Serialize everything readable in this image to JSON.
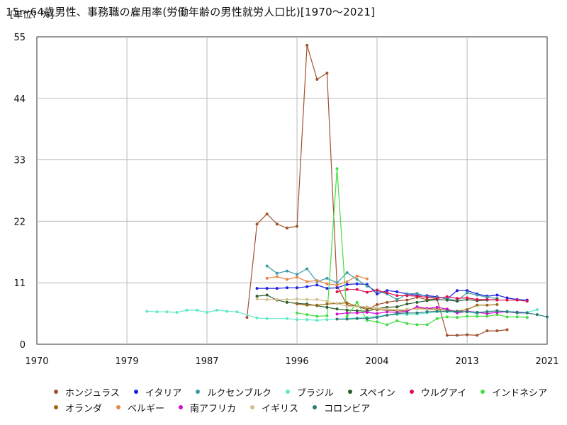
{
  "header": {
    "unit": "[単位：%]",
    "title": "15～64歳男性、事務職の雇用率(労働年齢の男性就労人口比)[1970～2021]"
  },
  "chart_data": {
    "type": "line",
    "title": "15～64歳男性、事務職の雇用率(労働年齢の男性就労人口比)[1970～2021]",
    "unit": "[単位：%]",
    "xlim": [
      1970,
      2021
    ],
    "ylim": [
      0,
      55
    ],
    "xticks": [
      1970,
      1979,
      1987,
      1996,
      2004,
      2013,
      2021
    ],
    "yticks": [
      0,
      11,
      22,
      33,
      44,
      55
    ],
    "grid": true,
    "legend_position": "bottom",
    "series": [
      {
        "name": "ホンジュラス",
        "color": "#a0522d",
        "x": [
          1991,
          1992,
          1993,
          1994,
          1995,
          1996,
          1997,
          1998,
          1999,
          2000,
          2001,
          2002,
          2003,
          2004,
          2005,
          2006,
          2007,
          2008,
          2009,
          2010,
          2011,
          2012,
          2013,
          2014,
          2015,
          2016,
          2017
        ],
        "y": [
          4.8,
          21.5,
          23.3,
          21.5,
          20.8,
          21.1,
          53.5,
          47.4,
          48.5,
          10.5,
          7.0,
          6.8,
          6.2,
          7.1,
          7.5,
          7.8,
          7.9,
          8.4,
          8.0,
          8.1,
          1.6,
          1.6,
          1.7,
          1.6,
          2.4,
          2.4,
          2.6
        ]
      },
      {
        "name": "イタリア",
        "color": "#2020e0",
        "x": [
          1992,
          1993,
          1994,
          1995,
          1996,
          1997,
          1998,
          1999,
          2000,
          2001,
          2002,
          2003,
          2004,
          2005,
          2006,
          2007,
          2008,
          2009,
          2010,
          2011,
          2012,
          2013,
          2014,
          2015,
          2016,
          2017,
          2018,
          2019
        ],
        "y": [
          10.0,
          10.0,
          10.0,
          10.1,
          10.1,
          10.3,
          10.6,
          10.0,
          10.1,
          10.7,
          10.8,
          10.7,
          9.0,
          9.6,
          9.4,
          9.0,
          8.8,
          8.7,
          8.5,
          8.1,
          9.6,
          9.6,
          9.0,
          8.6,
          8.8,
          8.3,
          8.0,
          7.9
        ]
      },
      {
        "name": "ルクセンブルク",
        "color": "#3a9aa8",
        "x": [
          1993,
          1994,
          1995,
          1996,
          1997,
          1998,
          1999,
          2000,
          2001,
          2002,
          2003,
          2004,
          2005,
          2006,
          2007,
          2008,
          2009,
          2010,
          2011,
          2012,
          2013,
          2014,
          2015,
          2016
        ],
        "y": [
          14.0,
          12.7,
          13.1,
          12.5,
          13.5,
          11.2,
          11.8,
          11.0,
          12.8,
          11.6,
          10.4,
          9.5,
          9.0,
          8.0,
          9.0,
          9.1,
          8.5,
          8.4,
          8.2,
          7.8,
          9.2,
          8.8,
          8.4,
          8.2
        ]
      },
      {
        "name": "ブラジル",
        "color": "#5fe8c8",
        "x": [
          1981,
          1982,
          1983,
          1984,
          1985,
          1986,
          1987,
          1988,
          1989,
          1990,
          1992,
          1993,
          1995,
          1996,
          1997,
          1998,
          1999,
          2001,
          2002,
          2003,
          2004,
          2005,
          2006,
          2007,
          2008,
          2009,
          2011,
          2012,
          2013,
          2014,
          2015,
          2016,
          2017,
          2018,
          2019,
          2020
        ],
        "y": [
          5.9,
          5.8,
          5.8,
          5.7,
          6.1,
          6.1,
          5.7,
          6.1,
          5.9,
          5.8,
          4.7,
          4.6,
          4.6,
          4.4,
          4.4,
          4.3,
          4.4,
          4.6,
          4.7,
          4.8,
          5.0,
          5.2,
          5.3,
          5.3,
          5.4,
          5.6,
          5.8,
          5.6,
          5.8,
          5.5,
          5.9,
          5.9,
          5.9,
          5.8,
          5.7,
          6.2
        ]
      },
      {
        "name": "スペイン",
        "color": "#2e5e2e",
        "x": [
          1992,
          1993,
          1994,
          1995,
          1996,
          1997,
          1998,
          1999,
          2000,
          2001,
          2002,
          2003,
          2004,
          2005,
          2006,
          2007,
          2008,
          2009,
          2010,
          2011,
          2012,
          2013,
          2014,
          2015,
          2016
        ],
        "y": [
          8.6,
          8.8,
          7.9,
          7.5,
          7.3,
          7.2,
          6.9,
          6.6,
          6.3,
          6.1,
          6.0,
          5.9,
          6.4,
          6.6,
          6.7,
          7.2,
          7.5,
          7.8,
          8.0,
          7.9,
          7.7,
          8.0,
          7.8,
          7.9,
          8.0
        ]
      },
      {
        "name": "ウルグアイ",
        "color": "#e01050",
        "x": [
          2000,
          2001,
          2002,
          2003,
          2004,
          2005,
          2006,
          2007,
          2008,
          2009,
          2010,
          2011,
          2012,
          2013,
          2014,
          2015,
          2016,
          2017,
          2018,
          2019
        ],
        "y": [
          9.4,
          9.8,
          9.8,
          9.3,
          9.7,
          9.2,
          8.7,
          8.7,
          8.6,
          8.4,
          8.2,
          8.5,
          8.2,
          8.3,
          8.0,
          8.0,
          7.9,
          7.9,
          7.9,
          7.7
        ]
      },
      {
        "name": "インドネシア",
        "color": "#44dd44",
        "x": [
          1996,
          1997,
          1998,
          1999,
          2000,
          2001,
          2002,
          2003,
          2004,
          2005,
          2006,
          2007,
          2008,
          2009,
          2010,
          2011,
          2012,
          2013,
          2014,
          2015,
          2016,
          2017,
          2018,
          2019
        ],
        "y": [
          5.6,
          5.3,
          5.0,
          5.1,
          31.4,
          5.0,
          7.5,
          4.3,
          4.0,
          3.5,
          4.2,
          3.7,
          3.5,
          3.5,
          4.6,
          4.9,
          4.8,
          5.0,
          5.0,
          5.0,
          5.3,
          4.9,
          4.9,
          4.8
        ]
      },
      {
        "name": "オランダ",
        "color": "#9a6a10",
        "x": [
          1996,
          1997,
          1998,
          1999,
          2000,
          2001,
          2002,
          2003,
          2004,
          2005,
          2006,
          2007,
          2008,
          2009,
          2010,
          2011,
          2012,
          2013,
          2014,
          2015,
          2016
        ],
        "y": [
          7.2,
          7.0,
          7.0,
          7.2,
          7.3,
          7.4,
          6.8,
          6.5,
          6.2,
          6.1,
          6.0,
          6.0,
          6.5,
          6.4,
          6.3,
          6.1,
          5.9,
          6.2,
          7.0,
          7.0,
          7.1
        ]
      },
      {
        "name": "ベルギー",
        "color": "#e8864a",
        "x": [
          1993,
          1994,
          1995,
          1996,
          1997,
          1998,
          1999,
          2000,
          2001,
          2002,
          2003
        ],
        "y": [
          11.8,
          12.1,
          11.6,
          12.0,
          11.2,
          11.4,
          10.8,
          10.6,
          11.2,
          12.2,
          11.7
        ]
      },
      {
        "name": "南アフリカ",
        "color": "#d010d0",
        "x": [
          2000,
          2001,
          2002,
          2003,
          2004,
          2005,
          2006,
          2007,
          2008,
          2009,
          2010,
          2011,
          2012,
          2013,
          2014,
          2015,
          2016,
          2017,
          2018,
          2019
        ],
        "y": [
          5.4,
          5.6,
          5.6,
          5.7,
          5.5,
          5.8,
          5.7,
          5.9,
          6.7,
          6.4,
          6.6,
          6.3,
          5.6,
          5.9,
          5.7,
          5.5,
          5.7,
          5.8,
          5.7,
          5.6
        ]
      },
      {
        "name": "イギリス",
        "color": "#d0c090",
        "x": [
          1992,
          1993,
          1994,
          1995,
          1996,
          1997,
          1998,
          1999,
          2000,
          2001,
          2002,
          2003,
          2004,
          2005,
          2006,
          2007,
          2008,
          2009,
          2010
        ],
        "y": [
          8.1,
          8.0,
          8.0,
          8.0,
          8.1,
          8.0,
          8.0,
          7.7,
          7.3,
          6.8,
          6.8,
          6.7,
          6.5,
          6.3,
          6.2,
          6.3,
          6.3,
          6.2,
          6.1
        ]
      },
      {
        "name": "コロンビア",
        "color": "#2a7a7a",
        "x": [
          2000,
          2001,
          2002,
          2003,
          2004,
          2005,
          2006,
          2007,
          2008,
          2009,
          2010,
          2011,
          2012,
          2013,
          2014,
          2015,
          2016,
          2017,
          2018,
          2019,
          2020,
          2021
        ],
        "y": [
          4.5,
          4.5,
          4.6,
          4.6,
          4.8,
          5.2,
          5.5,
          5.6,
          5.6,
          5.8,
          5.9,
          5.9,
          5.9,
          5.8,
          5.7,
          5.8,
          6.0,
          5.8,
          5.6,
          5.6,
          5.3,
          4.9
        ]
      }
    ]
  }
}
